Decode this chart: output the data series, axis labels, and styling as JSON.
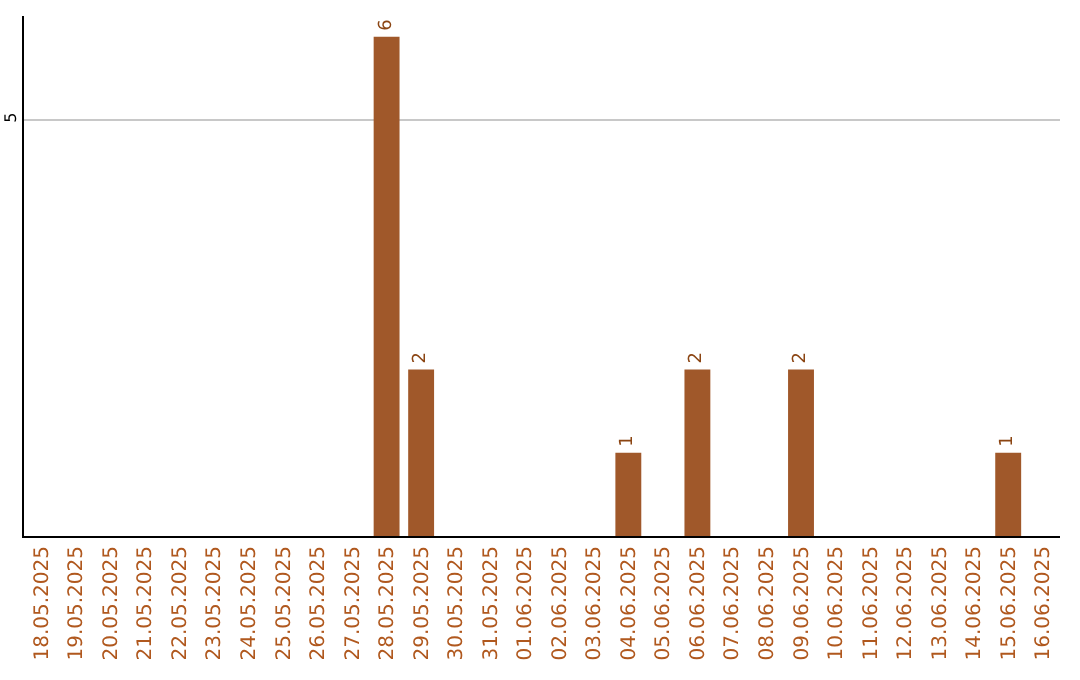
{
  "chart_data": {
    "type": "bar",
    "categories": [
      "18.05.2025",
      "19.05.2025",
      "20.05.2025",
      "21.05.2025",
      "22.05.2025",
      "23.05.2025",
      "24.05.2025",
      "25.05.2025",
      "26.05.2025",
      "27.05.2025",
      "28.05.2025",
      "29.05.2025",
      "30.05.2025",
      "31.05.2025",
      "01.06.2025",
      "02.06.2025",
      "03.06.2025",
      "04.06.2025",
      "05.06.2025",
      "06.06.2025",
      "07.06.2025",
      "08.06.2025",
      "09.06.2025",
      "10.06.2025",
      "11.06.2025",
      "12.06.2025",
      "13.06.2025",
      "14.06.2025",
      "15.06.2025",
      "16.06.2025"
    ],
    "values": [
      null,
      null,
      null,
      null,
      null,
      null,
      null,
      null,
      null,
      null,
      6,
      2,
      null,
      null,
      null,
      null,
      null,
      1,
      null,
      2,
      null,
      null,
      2,
      null,
      null,
      null,
      null,
      null,
      1,
      null
    ],
    "color": "#a0582a",
    "ylim": [
      0,
      6.25
    ],
    "yticks": [
      5
    ],
    "grid": "y",
    "data_labels": true,
    "legend": false
  }
}
